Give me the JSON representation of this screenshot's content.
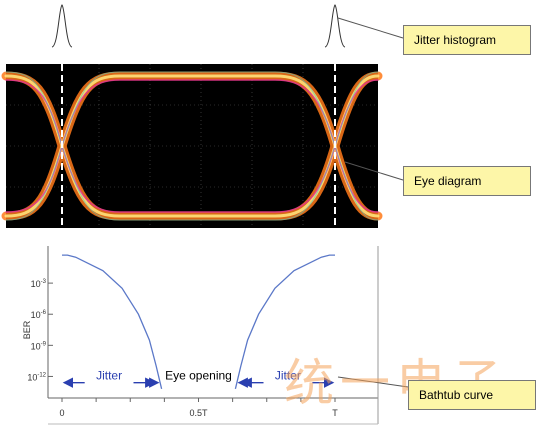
{
  "callouts": {
    "jitter_histogram": "Jitter histogram",
    "eye_diagram": "Eye diagram",
    "bathtub_curve": "Bathtub curve"
  },
  "chart_data": {
    "type": "line",
    "xlabel": "",
    "ylabel": "BER",
    "x_tick_labels": [
      "0",
      "0.5T",
      "T"
    ],
    "y_tick_labels": [
      "10^-3",
      "10^-6",
      "10^-9",
      "10^-12"
    ],
    "y_scale": "log",
    "x_range": [
      0,
      1
    ],
    "y_exponent_range": [
      0,
      -13.5
    ],
    "series": [
      {
        "x": [
          0,
          0.02,
          0.05,
          0.15,
          0.22,
          0.28,
          0.32,
          0.345,
          0.365
        ],
        "log10_ber": [
          -0.3,
          -0.3,
          -0.5,
          -1.8,
          -3.5,
          -6.0,
          -8.5,
          -11.0,
          -13.2
        ]
      },
      {
        "x": [
          0.635,
          0.655,
          0.68,
          0.72,
          0.78,
          0.85,
          0.95,
          0.98,
          1.0
        ],
        "log10_ber": [
          -13.2,
          -11.0,
          -8.5,
          -6.0,
          -3.5,
          -1.8,
          -0.5,
          -0.3,
          -0.3
        ]
      }
    ],
    "annotations": [
      "Jitter",
      "Eye opening",
      "Jitter"
    ],
    "colors": {
      "curve": "#5b78c8",
      "arrow": "#2a3fb0"
    }
  },
  "ber_tick_prefix": "10",
  "ber_tick_exponents": [
    "-3",
    "-6",
    "-9",
    "-12"
  ],
  "watermark": "统一电子"
}
